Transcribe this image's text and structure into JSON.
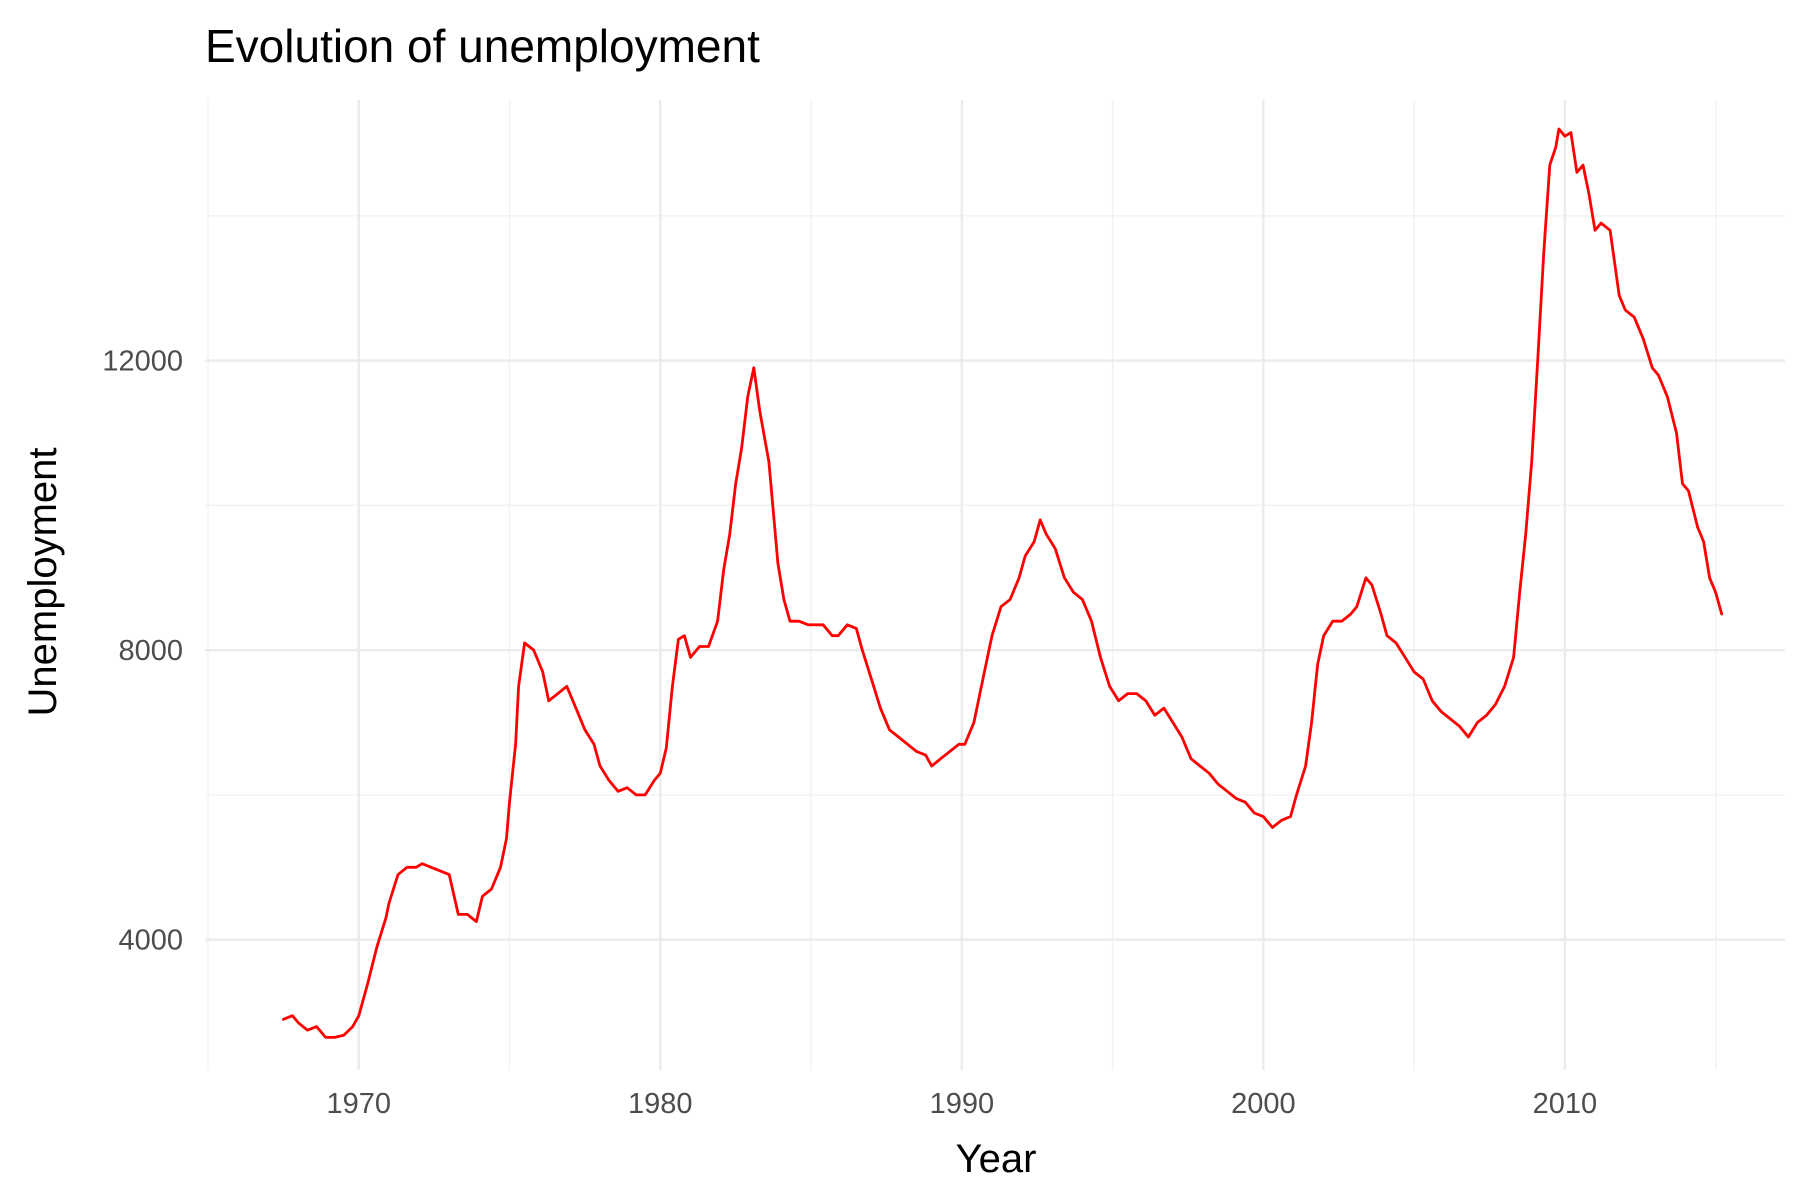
{
  "chart_data": {
    "type": "line",
    "title": "Evolution of unemployment",
    "xlabel": "Year",
    "ylabel": "Unemployment",
    "x_ticks": [
      "1970",
      "1980",
      "1990",
      "2000",
      "2010"
    ],
    "y_ticks": [
      "4000",
      "8000",
      "12000"
    ],
    "xlim": [
      1964.9,
      2017.3
    ],
    "ylim": [
      2200,
      15600
    ],
    "grid": true,
    "legend": "none",
    "series": [
      {
        "color": "#ff0000",
        "x": [
          1967.5,
          1967.8,
          1968.0,
          1968.3,
          1968.6,
          1968.9,
          1969.2,
          1969.5,
          1969.8,
          1970.0,
          1970.3,
          1970.6,
          1970.9,
          1971.0,
          1971.3,
          1971.6,
          1971.9,
          1972.1,
          1972.4,
          1972.7,
          1973.0,
          1973.3,
          1973.6,
          1973.9,
          1974.1,
          1974.4,
          1974.7,
          1974.9,
          1975.0,
          1975.2,
          1975.3,
          1975.5,
          1975.8,
          1976.1,
          1976.3,
          1976.6,
          1976.9,
          1977.2,
          1977.5,
          1977.8,
          1978.0,
          1978.3,
          1978.6,
          1978.9,
          1979.2,
          1979.5,
          1979.8,
          1980.0,
          1980.2,
          1980.4,
          1980.6,
          1980.8,
          1981.0,
          1981.3,
          1981.6,
          1981.9,
          1982.1,
          1982.3,
          1982.5,
          1982.7,
          1982.9,
          1983.1,
          1983.3,
          1983.6,
          1983.9,
          1984.1,
          1984.3,
          1984.6,
          1984.9,
          1985.1,
          1985.4,
          1985.7,
          1985.9,
          1986.2,
          1986.5,
          1986.7,
          1987.0,
          1987.3,
          1987.6,
          1987.9,
          1988.2,
          1988.5,
          1988.8,
          1989.0,
          1989.3,
          1989.6,
          1989.9,
          1990.1,
          1990.4,
          1990.7,
          1991.0,
          1991.3,
          1991.6,
          1991.9,
          1992.1,
          1992.4,
          1992.6,
          1992.8,
          1993.1,
          1993.4,
          1993.7,
          1994.0,
          1994.3,
          1994.6,
          1994.9,
          1995.2,
          1995.5,
          1995.8,
          1996.1,
          1996.4,
          1996.7,
          1997.0,
          1997.3,
          1997.6,
          1997.9,
          1998.2,
          1998.5,
          1998.8,
          1999.1,
          1999.4,
          1999.7,
          2000.0,
          2000.3,
          2000.6,
          2000.9,
          2001.1,
          2001.4,
          2001.6,
          2001.8,
          2002.0,
          2002.3,
          2002.6,
          2002.9,
          2003.1,
          2003.4,
          2003.6,
          2003.9,
          2004.1,
          2004.4,
          2004.7,
          2005.0,
          2005.3,
          2005.6,
          2005.9,
          2006.2,
          2006.5,
          2006.8,
          2007.1,
          2007.4,
          2007.7,
          2008.0,
          2008.3,
          2008.5,
          2008.7,
          2008.9,
          2009.1,
          2009.3,
          2009.5,
          2009.7,
          2009.8,
          2010.0,
          2010.2,
          2010.4,
          2010.6,
          2010.8,
          2011.0,
          2011.2,
          2011.5,
          2011.8,
          2012.0,
          2012.3,
          2012.6,
          2012.9,
          2013.1,
          2013.4,
          2013.7,
          2013.9,
          2014.1,
          2014.4,
          2014.6,
          2014.8,
          2015.0,
          2015.2
        ],
        "y": [
          2900,
          2950,
          2850,
          2750,
          2800,
          2650,
          2650,
          2680,
          2800,
          2950,
          3400,
          3900,
          4300,
          4500,
          4900,
          5000,
          5000,
          5050,
          5000,
          4950,
          4900,
          4350,
          4350,
          4250,
          4600,
          4700,
          5000,
          5400,
          5900,
          6700,
          7500,
          8100,
          8000,
          7700,
          7300,
          7400,
          7500,
          7200,
          6900,
          6700,
          6400,
          6200,
          6050,
          6100,
          6000,
          6000,
          6200,
          6300,
          6650,
          7500,
          8150,
          8200,
          7900,
          8050,
          8050,
          8400,
          9100,
          9600,
          10300,
          10800,
          11500,
          11900,
          11300,
          10600,
          9200,
          8700,
          8400,
          8400,
          8350,
          8350,
          8350,
          8200,
          8200,
          8350,
          8300,
          8000,
          7600,
          7200,
          6900,
          6800,
          6700,
          6600,
          6550,
          6400,
          6500,
          6600,
          6700,
          6700,
          7000,
          7600,
          8200,
          8600,
          8700,
          9000,
          9300,
          9500,
          9800,
          9600,
          9400,
          9000,
          8800,
          8700,
          8400,
          7900,
          7500,
          7300,
          7400,
          7400,
          7300,
          7100,
          7200,
          7000,
          6800,
          6500,
          6400,
          6300,
          6150,
          6050,
          5950,
          5900,
          5750,
          5700,
          5550,
          5650,
          5700,
          6000,
          6400,
          7000,
          7800,
          8200,
          8400,
          8400,
          8500,
          8600,
          9000,
          8900,
          8500,
          8200,
          8100,
          7900,
          7700,
          7600,
          7300,
          7150,
          7050,
          6950,
          6800,
          7000,
          7100,
          7250,
          7500,
          7900,
          8800,
          9600,
          10600,
          12000,
          13500,
          14700,
          14950,
          15200,
          15100,
          15150,
          14600,
          14700,
          14300,
          13800,
          13900,
          13800,
          12900,
          12700,
          12600,
          12300,
          11900,
          11800,
          11500,
          11000,
          10300,
          10200,
          9700,
          9500,
          9000,
          8800,
          8500
        ]
      }
    ]
  }
}
